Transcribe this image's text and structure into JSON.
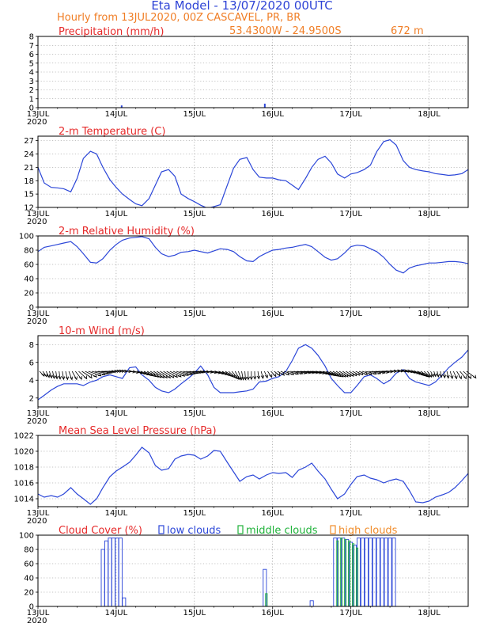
{
  "header": {
    "title": "Eta Model - 13/07/2020 00UTC",
    "subtitle": "Hourly from 13JUL2020, 00Z  CASCAVEL, PR, BR",
    "location": "53.4300W - 24.9500S",
    "elevation": "672  m"
  },
  "colors": {
    "title": "#2f44d6",
    "subtitle": "#f07e26",
    "panel_title": "#e62a2a",
    "series": "#2b46d8",
    "low_clouds": "#2b46d8",
    "middle_clouds": "#1fb23a",
    "high_clouds": "#f08c2a"
  },
  "time_axis": {
    "days": [
      "13JUL",
      "14JUL",
      "15JUL",
      "16JUL",
      "17JUL",
      "18JUL"
    ],
    "year": "2020",
    "range_days": [
      0,
      5.5
    ]
  },
  "chart_data": [
    {
      "type": "bar",
      "id": "precip",
      "title": "Precipitation (mm/h)",
      "ylim": [
        0,
        8
      ],
      "yticks": [
        0,
        1,
        2,
        3,
        4,
        5,
        6,
        7,
        8
      ],
      "x": [
        1.07,
        2.9
      ],
      "values": [
        0.25,
        0.45
      ]
    },
    {
      "type": "line",
      "id": "temp",
      "title": "2-m Temperature (C)",
      "ylim": [
        12,
        28
      ],
      "yticks": [
        12,
        15,
        18,
        21,
        24,
        27
      ],
      "x": [
        0,
        0.08,
        0.17,
        0.25,
        0.33,
        0.42,
        0.5,
        0.58,
        0.67,
        0.75,
        0.83,
        0.92,
        1.0,
        1.08,
        1.17,
        1.25,
        1.33,
        1.42,
        1.5,
        1.58,
        1.67,
        1.75,
        1.83,
        1.92,
        2.0,
        2.08,
        2.17,
        2.25,
        2.33,
        2.42,
        2.5,
        2.58,
        2.67,
        2.75,
        2.83,
        2.92,
        3.0,
        3.08,
        3.17,
        3.25,
        3.33,
        3.42,
        3.5,
        3.58,
        3.67,
        3.75,
        3.83,
        3.92,
        4.0,
        4.08,
        4.17,
        4.25,
        4.33,
        4.42,
        4.5,
        4.58,
        4.67,
        4.75,
        4.83,
        4.92,
        5.0,
        5.08,
        5.17,
        5.25,
        5.33,
        5.42,
        5.5
      ],
      "values": [
        21,
        17.5,
        16.5,
        16.4,
        16.2,
        15.5,
        18.5,
        23,
        24.6,
        24,
        21,
        18.2,
        16.5,
        15,
        13.8,
        12.8,
        12.4,
        14,
        17,
        20,
        20.5,
        19,
        15,
        14,
        13.3,
        12.5,
        11.8,
        12.2,
        12.6,
        17,
        20.8,
        22.8,
        23.2,
        20.5,
        18.8,
        18.6,
        18.6,
        18.2,
        18,
        17,
        16,
        18.5,
        21,
        22.8,
        23.5,
        22,
        19.5,
        18.6,
        19.5,
        19.8,
        20.5,
        21.5,
        24.5,
        26.8,
        27.2,
        26,
        22.5,
        21,
        20.5,
        20.2,
        20,
        19.6,
        19.4,
        19.2,
        19.3,
        19.6,
        20.5
      ]
    },
    {
      "type": "line",
      "id": "rh",
      "title": "2-m Relative Humidity (%)",
      "ylim": [
        0,
        100
      ],
      "yticks": [
        0,
        20,
        40,
        60,
        80,
        100
      ],
      "x": [
        0,
        0.08,
        0.17,
        0.25,
        0.33,
        0.42,
        0.5,
        0.58,
        0.67,
        0.75,
        0.83,
        0.92,
        1.0,
        1.08,
        1.17,
        1.25,
        1.33,
        1.42,
        1.5,
        1.58,
        1.67,
        1.75,
        1.83,
        1.92,
        2.0,
        2.08,
        2.17,
        2.25,
        2.33,
        2.42,
        2.5,
        2.58,
        2.67,
        2.75,
        2.83,
        2.92,
        3.0,
        3.08,
        3.17,
        3.25,
        3.33,
        3.42,
        3.5,
        3.58,
        3.67,
        3.75,
        3.83,
        3.92,
        4.0,
        4.08,
        4.17,
        4.25,
        4.33,
        4.42,
        4.5,
        4.58,
        4.67,
        4.75,
        4.83,
        4.92,
        5.0,
        5.08,
        5.17,
        5.25,
        5.33,
        5.42,
        5.5
      ],
      "values": [
        78,
        84,
        86,
        88,
        90,
        92,
        85,
        75,
        63,
        62,
        68,
        80,
        88,
        94,
        97,
        98,
        99,
        96,
        84,
        75,
        71,
        73,
        77,
        78,
        80,
        78,
        76,
        79,
        82,
        81,
        78,
        71,
        65,
        64,
        71,
        76,
        80,
        81,
        83,
        84,
        86,
        88,
        85,
        78,
        70,
        66,
        68,
        76,
        85,
        87,
        86,
        82,
        78,
        70,
        60,
        52,
        48,
        55,
        58,
        60,
        62,
        62,
        63,
        64,
        64,
        63,
        61
      ]
    },
    {
      "type": "line",
      "id": "wind",
      "title": "10-m Wind (m/s)",
      "ylim": [
        1,
        9
      ],
      "yticks": [
        2,
        4,
        6,
        8
      ],
      "x": [
        0,
        0.08,
        0.17,
        0.25,
        0.33,
        0.42,
        0.5,
        0.58,
        0.67,
        0.75,
        0.83,
        0.92,
        1.0,
        1.08,
        1.17,
        1.25,
        1.33,
        1.42,
        1.5,
        1.58,
        1.67,
        1.75,
        1.83,
        1.92,
        2.0,
        2.08,
        2.17,
        2.25,
        2.33,
        2.42,
        2.5,
        2.58,
        2.67,
        2.75,
        2.83,
        2.92,
        3.0,
        3.08,
        3.17,
        3.25,
        3.33,
        3.42,
        3.5,
        3.58,
        3.67,
        3.75,
        3.83,
        3.92,
        4.0,
        4.08,
        4.17,
        4.25,
        4.33,
        4.42,
        4.5,
        4.58,
        4.67,
        4.75,
        4.83,
        4.92,
        5.0,
        5.08,
        5.17,
        5.25,
        5.33,
        5.42,
        5.5
      ],
      "values": [
        1.8,
        2.3,
        2.9,
        3.3,
        3.6,
        3.6,
        3.6,
        3.4,
        3.8,
        4.0,
        4.4,
        4.6,
        4.4,
        4.2,
        5.4,
        5.5,
        4.6,
        4.0,
        3.2,
        2.8,
        2.6,
        3.0,
        3.6,
        4.2,
        4.8,
        5.6,
        4.6,
        3.2,
        2.6,
        2.6,
        2.6,
        2.7,
        2.8,
        3.0,
        3.8,
        3.9,
        4.2,
        4.4,
        5.0,
        6.2,
        7.6,
        8.0,
        7.6,
        6.8,
        5.6,
        4.2,
        3.4,
        2.6,
        2.6,
        3.4,
        4.4,
        4.6,
        4.2,
        3.6,
        4.0,
        4.8,
        5.2,
        4.2,
        3.8,
        3.6,
        3.4,
        3.8,
        4.6,
        5.4,
        6.0,
        6.6,
        7.4
      ]
    },
    {
      "type": "line",
      "id": "pressure",
      "title": "Mean Sea Level Pressure (hPa)",
      "ylim": [
        1013,
        1022
      ],
      "yticks": [
        1014,
        1016,
        1018,
        1020,
        1022
      ],
      "x": [
        0,
        0.08,
        0.17,
        0.25,
        0.33,
        0.42,
        0.5,
        0.58,
        0.67,
        0.75,
        0.83,
        0.92,
        1.0,
        1.08,
        1.17,
        1.25,
        1.33,
        1.42,
        1.5,
        1.58,
        1.67,
        1.75,
        1.83,
        1.92,
        2.0,
        2.08,
        2.17,
        2.25,
        2.33,
        2.42,
        2.5,
        2.58,
        2.67,
        2.75,
        2.83,
        2.92,
        3.0,
        3.08,
        3.17,
        3.25,
        3.33,
        3.42,
        3.5,
        3.58,
        3.67,
        3.75,
        3.83,
        3.92,
        4.0,
        4.08,
        4.17,
        4.25,
        4.33,
        4.42,
        4.5,
        4.58,
        4.67,
        4.75,
        4.83,
        4.92,
        5.0,
        5.08,
        5.17,
        5.25,
        5.33,
        5.42,
        5.5
      ],
      "values": [
        1014.6,
        1014.2,
        1014.4,
        1014.2,
        1014.6,
        1015.4,
        1014.6,
        1014.0,
        1013.3,
        1014.0,
        1015.4,
        1016.8,
        1017.5,
        1018.0,
        1018.6,
        1019.5,
        1020.5,
        1019.8,
        1018.2,
        1017.6,
        1017.8,
        1019.0,
        1019.4,
        1019.6,
        1019.5,
        1019.0,
        1019.4,
        1020.1,
        1020.0,
        1018.6,
        1017.4,
        1016.2,
        1016.8,
        1017.0,
        1016.5,
        1017.0,
        1017.3,
        1017.2,
        1017.3,
        1016.7,
        1017.6,
        1018.0,
        1018.5,
        1017.5,
        1016.5,
        1015.2,
        1014.0,
        1014.6,
        1015.8,
        1016.8,
        1017.0,
        1016.6,
        1016.4,
        1016.0,
        1016.3,
        1016.5,
        1016.2,
        1015.0,
        1013.6,
        1013.5,
        1013.7,
        1014.2,
        1014.5,
        1014.8,
        1015.4,
        1016.3,
        1017.2
      ]
    },
    {
      "type": "bar",
      "id": "clouds",
      "title": "Cloud Cover (%)",
      "ylim": [
        0,
        100
      ],
      "yticks": [
        0,
        20,
        40,
        60,
        80,
        100
      ],
      "legend": [
        "low clouds",
        "middle clouds",
        "high clouds"
      ],
      "low": {
        "x": [
          0.83,
          0.875,
          0.92,
          0.965,
          1.01,
          1.055,
          1.1,
          2.9,
          3.5,
          3.8,
          3.85,
          3.9,
          3.95,
          4.0,
          4.05,
          4.1,
          4.15,
          4.2,
          4.25,
          4.3,
          4.35,
          4.4,
          4.45,
          4.5,
          4.55
        ],
        "values": [
          80,
          92,
          96,
          96,
          96,
          96,
          12,
          52,
          8,
          96,
          96,
          96,
          94,
          90,
          86,
          96,
          96,
          96,
          96,
          96,
          96,
          96,
          96,
          96,
          96
        ]
      },
      "middle": {
        "x": [
          2.92,
          3.83,
          3.88,
          3.93,
          3.98,
          4.03,
          4.08
        ],
        "values": [
          18,
          92,
          96,
          94,
          92,
          88,
          82
        ]
      }
    }
  ]
}
